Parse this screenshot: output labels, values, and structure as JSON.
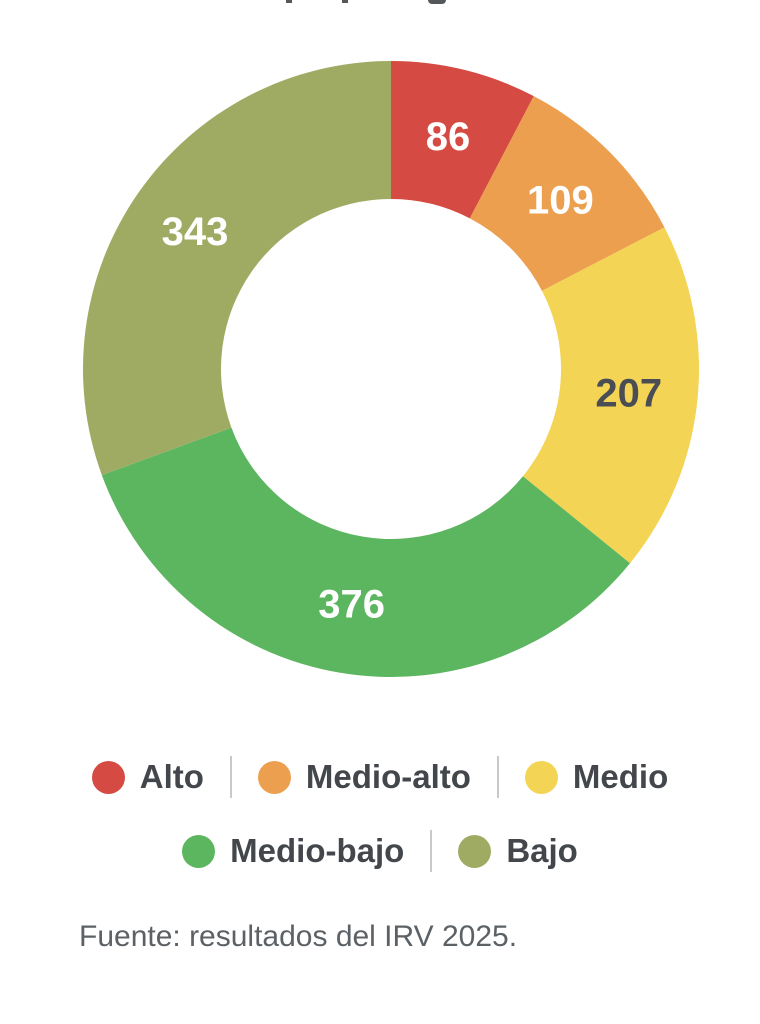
{
  "chart_data": {
    "type": "pie",
    "subtype": "donut",
    "direction": "clockwise",
    "start_angle_deg": 0,
    "total": 1121,
    "segments": [
      {
        "label": "Alto",
        "value": 86,
        "color": "#d54a42",
        "value_color": "#ffffff"
      },
      {
        "label": "Medio-alto",
        "value": 109,
        "color": "#ec9f4f",
        "value_color": "#ffffff"
      },
      {
        "label": "Medio",
        "value": 207,
        "color": "#f4d455",
        "value_color": "#4a4e54"
      },
      {
        "label": "Medio-bajo",
        "value": 376,
        "color": "#5cb55f",
        "value_color": "#ffffff"
      },
      {
        "label": "Bajo",
        "value": 343,
        "color": "#9fab63",
        "value_color": "#ffffff"
      }
    ],
    "legend_position": "bottom"
  },
  "legend": {
    "rows": [
      [
        {
          "label": "Alto",
          "color": "#d54a42"
        },
        {
          "label": "Medio-alto",
          "color": "#ec9f4f"
        },
        {
          "label": "Medio",
          "color": "#f4d455"
        }
      ],
      [
        {
          "label": "Medio-bajo",
          "color": "#5cb55f"
        },
        {
          "label": "Bajo",
          "color": "#9fab63"
        }
      ]
    ]
  },
  "source_note": "Fuente: resultados del IRV 2025."
}
